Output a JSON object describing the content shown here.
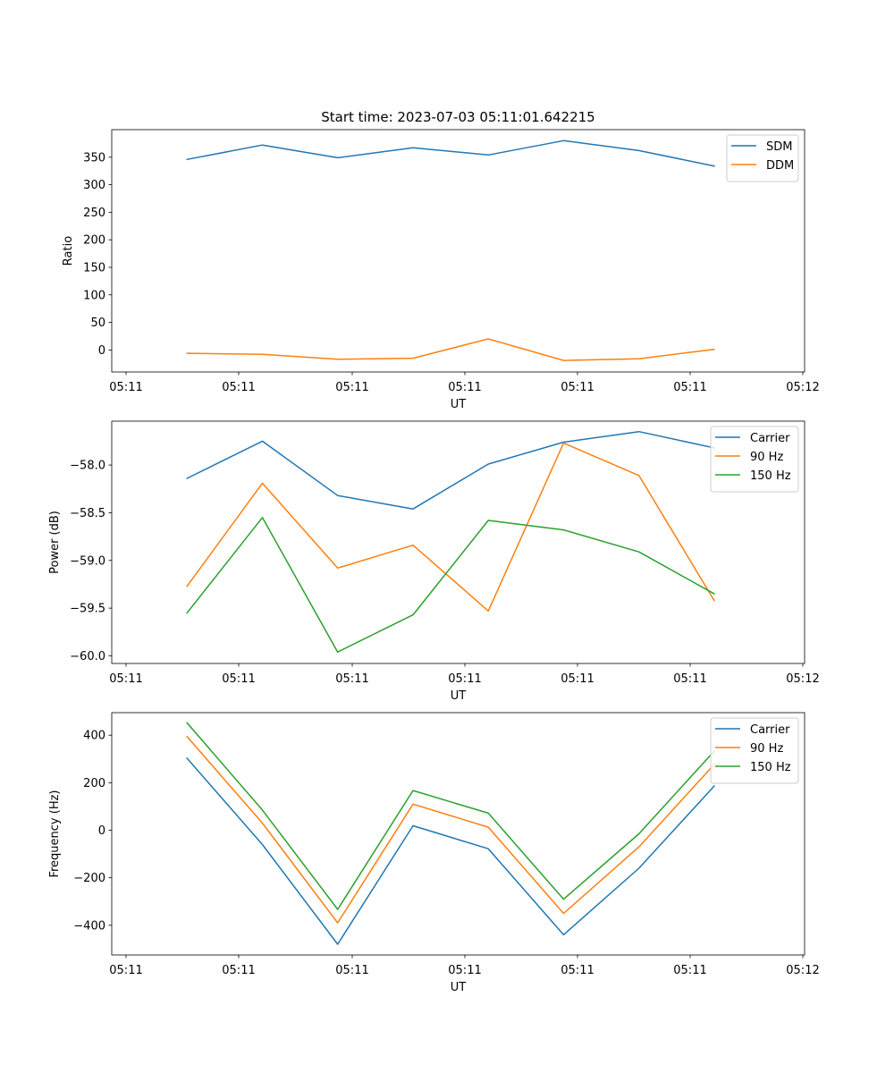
{
  "figure_title": "Start time: 2023-07-03 05:11:01.642215",
  "chart_data": [
    {
      "type": "line",
      "title": "Start time: 2023-07-03 05:11:01.642215",
      "xlabel": "UT",
      "ylabel": "Ratio",
      "x_tick_labels": [
        "05:11",
        "05:11",
        "05:11",
        "05:11",
        "05:11",
        "05:11",
        "05:12"
      ],
      "x": [
        1,
        2,
        3,
        4,
        5,
        6,
        7,
        8
      ],
      "xlim": [
        0,
        9.2
      ],
      "ylim": [
        -40,
        400
      ],
      "y_ticks": [
        0,
        50,
        100,
        150,
        200,
        250,
        300,
        350
      ],
      "legend_position": "top-right",
      "series": [
        {
          "name": "SDM",
          "color": "#1f77b4",
          "values": [
            346,
            372,
            349,
            367,
            354,
            380,
            362,
            334
          ]
        },
        {
          "name": "DDM",
          "color": "#ff7f0e",
          "values": [
            -6,
            -8,
            -17,
            -15,
            20,
            -19,
            -16,
            1
          ]
        }
      ]
    },
    {
      "type": "line",
      "title": "",
      "xlabel": "UT",
      "ylabel": "Power (dB)",
      "x_tick_labels": [
        "05:11",
        "05:11",
        "05:11",
        "05:11",
        "05:11",
        "05:11",
        "05:12"
      ],
      "x": [
        1,
        2,
        3,
        4,
        5,
        6,
        7,
        8
      ],
      "xlim": [
        0,
        9.2
      ],
      "ylim": [
        -60.08,
        -57.54
      ],
      "y_ticks": [
        -60.0,
        -59.5,
        -59.0,
        -58.5,
        -58.0
      ],
      "y_tick_labels": [
        "−60.0",
        "−59.5",
        "−59.0",
        "−58.5",
        "−58.0"
      ],
      "legend_position": "top-right",
      "series": [
        {
          "name": "Carrier",
          "color": "#1f77b4",
          "values": [
            -58.14,
            -57.75,
            -58.32,
            -58.46,
            -57.99,
            -57.76,
            -57.65,
            -57.82
          ]
        },
        {
          "name": "90 Hz",
          "color": "#ff7f0e",
          "values": [
            -59.27,
            -58.19,
            -59.08,
            -58.84,
            -59.53,
            -57.77,
            -58.11,
            -59.42
          ]
        },
        {
          "name": "150 Hz",
          "color": "#2ca02c",
          "values": [
            -59.55,
            -58.55,
            -59.96,
            -59.57,
            -58.58,
            -58.68,
            -58.91,
            -59.35
          ]
        }
      ]
    },
    {
      "type": "line",
      "title": "",
      "xlabel": "UT",
      "ylabel": "Frequency (Hz)",
      "x_tick_labels": [
        "05:11",
        "05:11",
        "05:11",
        "05:11",
        "05:11",
        "05:11",
        "05:12"
      ],
      "x": [
        1,
        2,
        3,
        4,
        5,
        6,
        7,
        8
      ],
      "xlim": [
        0,
        9.2
      ],
      "ylim": [
        -525,
        495
      ],
      "y_ticks": [
        -400,
        -200,
        0,
        200,
        400
      ],
      "y_tick_labels": [
        "−400",
        "−200",
        "0",
        "200",
        "400"
      ],
      "legend_position": "top-right",
      "series": [
        {
          "name": "Carrier",
          "color": "#1f77b4",
          "values": [
            303,
            -60,
            -480,
            19,
            -78,
            -440,
            -160,
            186
          ]
        },
        {
          "name": "90 Hz",
          "color": "#ff7f0e",
          "values": [
            394,
            30,
            -390,
            110,
            13,
            -350,
            -70,
            277
          ]
        },
        {
          "name": "150 Hz",
          "color": "#2ca02c",
          "values": [
            452,
            85,
            -333,
            167,
            72,
            -290,
            -15,
            333
          ]
        }
      ]
    }
  ]
}
